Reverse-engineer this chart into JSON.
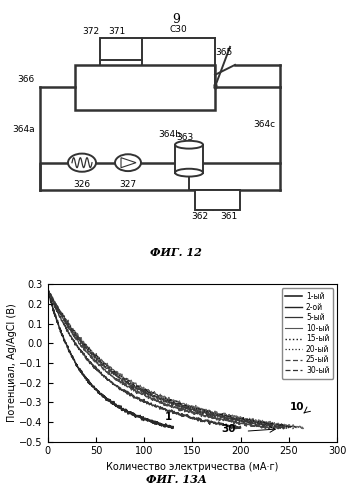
{
  "fig_number_top": "9",
  "fig_caption_top": "ФИГ. 12",
  "fig_caption_bottom": "ФИГ. 13А",
  "ylabel": "Потенциал, Ag/AgCl (В)",
  "xlabel": "Количество электричества (мА·г)",
  "ylim": [
    -0.5,
    0.3
  ],
  "xlim": [
    0,
    300
  ],
  "yticks": [
    -0.5,
    -0.4,
    -0.3,
    -0.2,
    -0.1,
    0.0,
    0.1,
    0.2,
    0.3
  ],
  "xticks": [
    0,
    50,
    100,
    150,
    200,
    250,
    300
  ],
  "legend_labels": [
    "1-ый",
    "2-ой",
    "5-ый",
    "10-ый",
    "15-ый",
    "20-ый",
    "25-ый",
    "30-ый"
  ],
  "background_color": "#ffffff"
}
